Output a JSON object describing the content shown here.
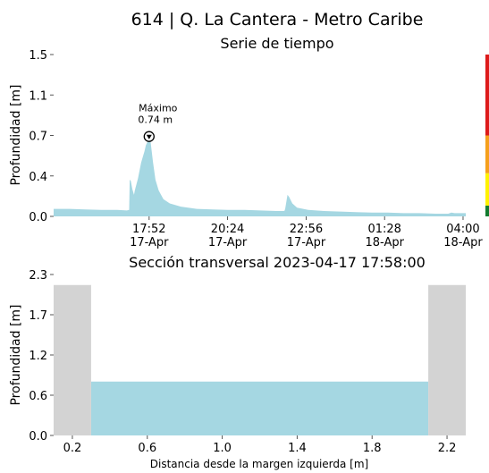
{
  "title": "614 | Q. La Cantera - Metro Caribe",
  "chart_data": [
    {
      "type": "area",
      "title": "Serie de tiempo",
      "ylabel": "Profundidad [m]",
      "xlabel": "",
      "ylim": [
        0.0,
        1.5
      ],
      "xlim_hours_from_start": [
        0,
        25.9
      ],
      "y_ticks": [
        "0.0",
        "0.4",
        "0.7",
        "1.1",
        "1.5"
      ],
      "y_tick_values": [
        0.0,
        0.375,
        0.75,
        1.125,
        1.5
      ],
      "x_ticks": [
        {
          "t": 6.0,
          "time": "17:52",
          "date": "17-Apr"
        },
        {
          "t": 10.93,
          "time": "20:24",
          "date": "17-Apr"
        },
        {
          "t": 15.87,
          "time": "22:56",
          "date": "17-Apr"
        },
        {
          "t": 20.8,
          "time": "01:28",
          "date": "18-Apr"
        },
        {
          "t": 25.73,
          "time": "04:00",
          "date": "18-Apr"
        }
      ],
      "series": [
        {
          "color": "#a5d7e2",
          "points": [
            [
              0.0,
              0.07
            ],
            [
              1.0,
              0.07
            ],
            [
              2.0,
              0.065
            ],
            [
              3.0,
              0.06
            ],
            [
              4.0,
              0.06
            ],
            [
              4.6,
              0.055
            ],
            [
              4.75,
              0.06
            ],
            [
              4.78,
              0.34
            ],
            [
              4.85,
              0.33
            ],
            [
              4.95,
              0.25
            ],
            [
              5.05,
              0.2
            ],
            [
              5.1,
              0.24
            ],
            [
              5.3,
              0.35
            ],
            [
              5.5,
              0.5
            ],
            [
              5.6,
              0.55
            ],
            [
              5.7,
              0.6
            ],
            [
              5.8,
              0.66
            ],
            [
              5.9,
              0.69
            ],
            [
              6.0,
              0.74
            ],
            [
              6.1,
              0.68
            ],
            [
              6.25,
              0.5
            ],
            [
              6.4,
              0.34
            ],
            [
              6.6,
              0.24
            ],
            [
              6.9,
              0.16
            ],
            [
              7.3,
              0.12
            ],
            [
              8.0,
              0.09
            ],
            [
              9.0,
              0.07
            ],
            [
              10.0,
              0.065
            ],
            [
              11.0,
              0.06
            ],
            [
              12.0,
              0.06
            ],
            [
              13.0,
              0.055
            ],
            [
              14.0,
              0.05
            ],
            [
              14.5,
              0.05
            ],
            [
              14.55,
              0.07
            ],
            [
              14.7,
              0.2
            ],
            [
              14.8,
              0.18
            ],
            [
              15.0,
              0.12
            ],
            [
              15.3,
              0.08
            ],
            [
              16.0,
              0.06
            ],
            [
              17.0,
              0.05
            ],
            [
              18.0,
              0.045
            ],
            [
              19.0,
              0.04
            ],
            [
              20.0,
              0.035
            ],
            [
              21.0,
              0.035
            ],
            [
              22.0,
              0.03
            ],
            [
              23.0,
              0.03
            ],
            [
              24.0,
              0.025
            ],
            [
              24.8,
              0.025
            ],
            [
              25.0,
              0.035
            ],
            [
              25.2,
              0.03
            ],
            [
              25.5,
              0.03
            ],
            [
              25.9,
              0.03
            ]
          ]
        }
      ],
      "annotations": [
        {
          "text_line1": "Máximo",
          "text_line2": "0.74 m",
          "t": 6.0,
          "y": 0.74
        }
      ],
      "level_bar": [
        {
          "from": 0.0,
          "to": 0.1,
          "color": "#137b2f"
        },
        {
          "from": 0.1,
          "to": 0.4,
          "color": "#fff200"
        },
        {
          "from": 0.4,
          "to": 0.75,
          "color": "#f5a01c"
        },
        {
          "from": 0.75,
          "to": 1.5,
          "color": "#dd1a1a"
        }
      ]
    },
    {
      "type": "area",
      "title": "Sección transversal 2023-04-17 17:58:00",
      "ylabel": "Profundidad [m]",
      "xlabel": "Distancia desde la margen izquierda [m]",
      "xlim": [
        0.0,
        2.2
      ],
      "ylim": [
        0.0,
        2.3
      ],
      "x_ticks": [
        "0.2",
        "0.6",
        "1.0",
        "1.4",
        "1.8",
        "2.2"
      ],
      "x_tick_values": [
        0.2,
        0.6,
        1.0,
        1.4,
        1.8,
        2.2
      ],
      "y_ticks": [
        "0.0",
        "0.6",
        "1.2",
        "1.7",
        "2.3"
      ],
      "y_tick_values": [
        0.0,
        0.575,
        1.15,
        1.725,
        2.3
      ],
      "water_level": 0.77,
      "water_color": "#a5d7e2",
      "bank_color": "#d3d3d3",
      "banks": [
        {
          "x_from": 0.0,
          "x_to": 0.2,
          "top": 2.15
        },
        {
          "x_from": 2.0,
          "x_to": 2.2,
          "top": 2.15
        }
      ],
      "channel": {
        "x_from": 0.2,
        "x_to": 2.0
      }
    }
  ]
}
